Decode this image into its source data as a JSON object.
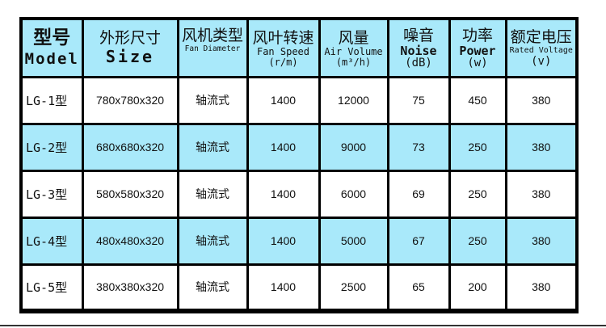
{
  "header": {
    "model": {
      "zh": "型号",
      "en": "Model"
    },
    "size": {
      "zh": "外形尺寸",
      "en": "Size"
    },
    "fan_type": {
      "zh": "风机类型",
      "en": "Fan Diameter"
    },
    "fan_speed": {
      "zh": "风叶转速",
      "en": "Fan Speed",
      "unit": "(r/m)"
    },
    "air_volume": {
      "zh": "风量",
      "en": "Air Volume",
      "unit": "(m³/h)"
    },
    "noise": {
      "zh": "噪音",
      "en": "Noise",
      "unit": "(dB)"
    },
    "power": {
      "zh": "功率",
      "en": "Power",
      "unit": "(w)"
    },
    "voltage": {
      "zh": "额定电压",
      "en": "Rated Voltage",
      "unit": "(v)"
    }
  },
  "rows": [
    {
      "model": "LG-1型",
      "size": "780x780x320",
      "type": "轴流式",
      "speed": "1400",
      "volume": "12000",
      "noise": "75",
      "power": "450",
      "voltage": "380"
    },
    {
      "model": "LG-2型",
      "size": "680x680x320",
      "type": "轴流式",
      "speed": "1400",
      "volume": "9000",
      "noise": "73",
      "power": "250",
      "voltage": "380"
    },
    {
      "model": "LG-3型",
      "size": "580x580x320",
      "type": "轴流式",
      "speed": "1400",
      "volume": "6000",
      "noise": "69",
      "power": "250",
      "voltage": "380"
    },
    {
      "model": "LG-4型",
      "size": "480x480x320",
      "type": "轴流式",
      "speed": "1400",
      "volume": "5000",
      "noise": "67",
      "power": "250",
      "voltage": "380"
    },
    {
      "model": "LG-5型",
      "size": "380x380x320",
      "type": "轴流式",
      "speed": "1400",
      "volume": "2500",
      "noise": "65",
      "power": "200",
      "voltage": "380"
    }
  ],
  "colors": {
    "header_bg": "#a9e9fa",
    "alt_row_bg": "#a9e9fa",
    "border": "#000000"
  }
}
